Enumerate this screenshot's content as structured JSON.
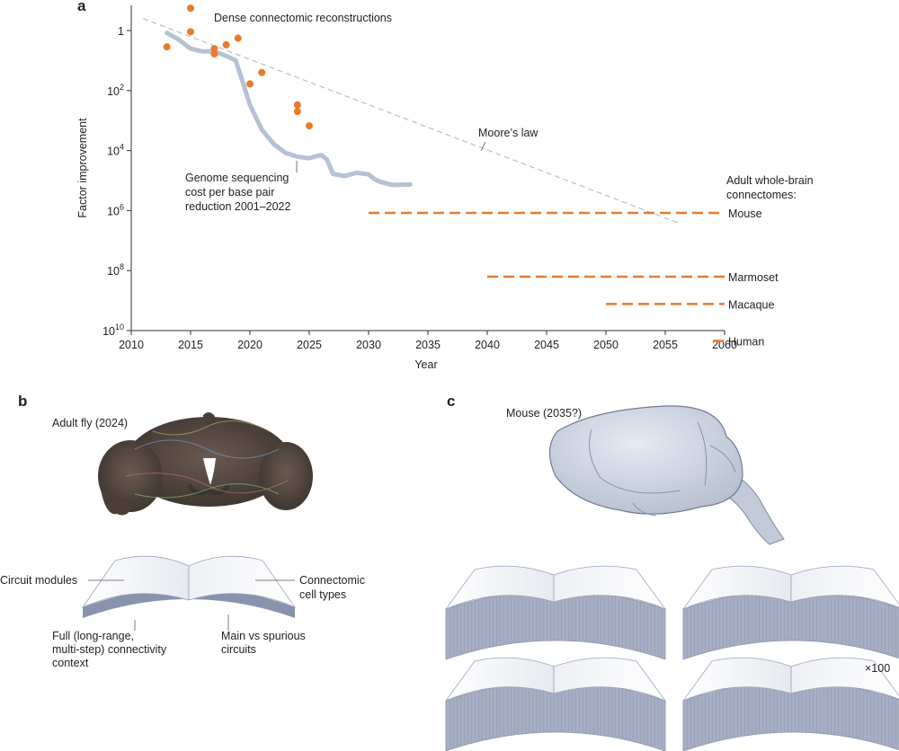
{
  "panels": {
    "a": "a",
    "b": "b",
    "c": "c"
  },
  "chart_data": {
    "type": "scatter",
    "xlabel": "Year",
    "ylabel": "Factor improvement",
    "xlim": [
      2010,
      2060
    ],
    "y_log_scale": true,
    "y_inverted": true,
    "x_ticks": [
      "2010",
      "2015",
      "2020",
      "2025",
      "2030",
      "2035",
      "2040",
      "2045",
      "2050",
      "2055",
      "2060"
    ],
    "y_ticks": [
      {
        "base": "1",
        "exp": ""
      },
      {
        "base": "10",
        "exp": "2"
      },
      {
        "base": "10",
        "exp": "4"
      },
      {
        "base": "10",
        "exp": "6"
      },
      {
        "base": "10",
        "exp": "8"
      },
      {
        "base": "10",
        "exp": "10"
      }
    ],
    "dense_label": "Dense connectomic reconstructions",
    "dense_points": [
      {
        "x": 2013,
        "y": 3.5
      },
      {
        "x": 2015,
        "y": 0.18
      },
      {
        "x": 2015,
        "y": 1.1
      },
      {
        "x": 2017,
        "y": 4
      },
      {
        "x": 2017,
        "y": 6
      },
      {
        "x": 2018,
        "y": 3
      },
      {
        "x": 2019,
        "y": 1.8
      },
      {
        "x": 2020,
        "y": 60
      },
      {
        "x": 2021,
        "y": 25
      },
      {
        "x": 2024,
        "y": 300
      },
      {
        "x": 2024,
        "y": 500
      },
      {
        "x": 2025,
        "y": 1500
      }
    ],
    "moores_law": {
      "label": "Moore’s law",
      "from": {
        "x": 2011,
        "y": 0.4
      },
      "to": {
        "x": 2056,
        "y": 2500000.0
      }
    },
    "genome_label": [
      "Genome sequencing",
      "cost per base pair",
      "reduction 2001–2022"
    ],
    "genome_curve": [
      {
        "x": 2013,
        "y": 1.2
      },
      {
        "x": 2014,
        "y": 2
      },
      {
        "x": 2015,
        "y": 4
      },
      {
        "x": 2016,
        "y": 5
      },
      {
        "x": 2017,
        "y": 5
      },
      {
        "x": 2018,
        "y": 7
      },
      {
        "x": 2018.8,
        "y": 10
      },
      {
        "x": 2019.3,
        "y": 40
      },
      {
        "x": 2020,
        "y": 300
      },
      {
        "x": 2021,
        "y": 2000
      },
      {
        "x": 2022,
        "y": 6000
      },
      {
        "x": 2023,
        "y": 12000
      },
      {
        "x": 2024,
        "y": 16000
      },
      {
        "x": 2025,
        "y": 18000
      },
      {
        "x": 2026,
        "y": 14000
      },
      {
        "x": 2026.5,
        "y": 20000
      },
      {
        "x": 2027,
        "y": 60000
      },
      {
        "x": 2028,
        "y": 70000
      },
      {
        "x": 2029,
        "y": 55000
      },
      {
        "x": 2030,
        "y": 62000
      },
      {
        "x": 2030.5,
        "y": 90000
      },
      {
        "x": 2031,
        "y": 110000
      },
      {
        "x": 2032,
        "y": 140000
      },
      {
        "x": 2033.5,
        "y": 135000
      }
    ],
    "adult_label": [
      "Adult whole-brain",
      "connectomes:"
    ],
    "connectomes": [
      {
        "name": "Mouse",
        "start": 2030,
        "end": 2060,
        "y": 1200000.0
      },
      {
        "name": "Marmoset",
        "start": 2040,
        "end": 2060,
        "y": 160000000.0
      },
      {
        "name": "Macaque",
        "start": 2050,
        "end": 2060,
        "y": 1300000000.0
      },
      {
        "name": "Human",
        "start": 2060,
        "end": 2060,
        "y": 22000000000.0
      }
    ],
    "colors": {
      "points": "#ea7a2b",
      "curve": "#b6c1d3",
      "moore": "#bdbdbd",
      "dashes": "#ea7a2b"
    }
  },
  "panel_b": {
    "title": "Adult fly (2024)",
    "labels": {
      "circuit_modules": "Circuit modules",
      "cell_types": [
        "Connectomic",
        "cell types"
      ],
      "context": [
        "Full (long-range,",
        "multi-step) connectivity",
        "context"
      ],
      "circuits": [
        "Main vs spurious",
        "circuits"
      ]
    }
  },
  "panel_c": {
    "title": "Mouse (2035?)",
    "multiplier": "×100"
  }
}
